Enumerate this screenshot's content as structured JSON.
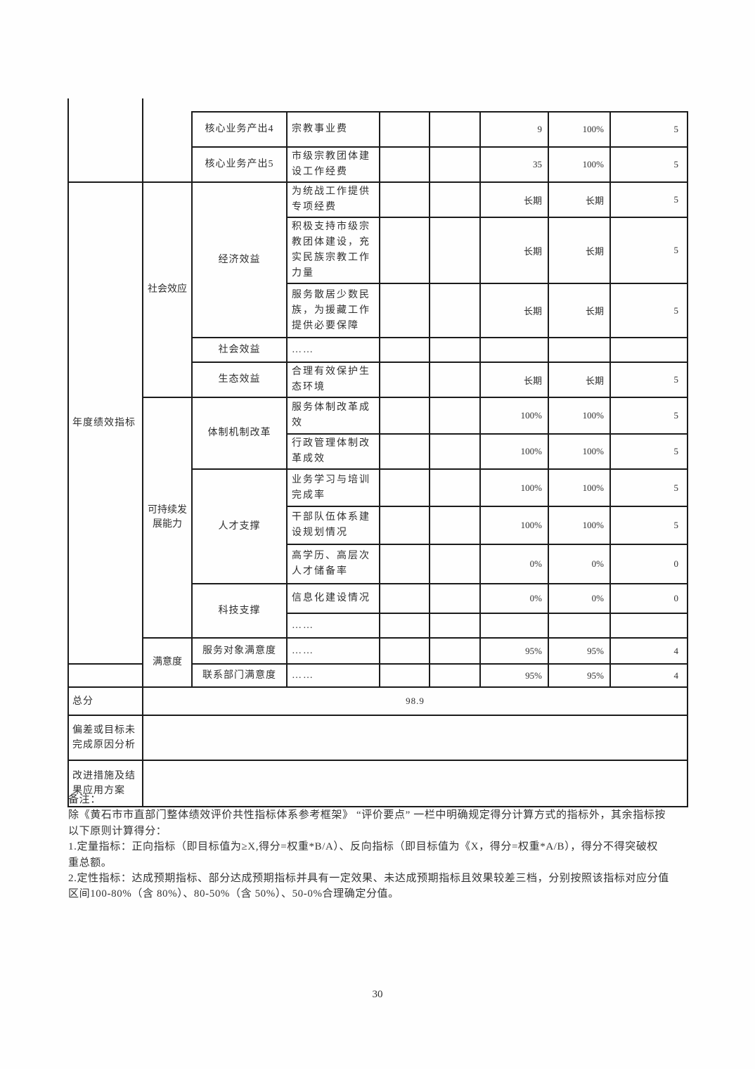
{
  "colors": {
    "border": "#1b1b1b",
    "text": "#2f2f2f"
  },
  "table": {
    "level1_annual_label": "年度绩效指标",
    "level2": {
      "social": "社会效应",
      "sustainability": "可持续发展能力",
      "satisfaction": "满意度"
    },
    "rows": [
      {
        "group": "核心业务产出4",
        "name": "宗教事业费",
        "v1": "9",
        "v2": "100%",
        "score": "5"
      },
      {
        "group": "核心业务产出5",
        "name": "市级宗教团体建设工作经费",
        "v1": "35",
        "v2": "100%",
        "score": "5"
      },
      {
        "group": "经济效益",
        "name": "为统战工作提供专项经费",
        "v1": "长期",
        "v2": "长期",
        "score": "5"
      },
      {
        "name": "积极支持市级宗教团体建设，充实民族宗教工作力量",
        "v1": "长期",
        "v2": "长期",
        "score": "5"
      },
      {
        "name": "服务散居少数民族，为援藏工作提供必要保障",
        "v1": "长期",
        "v2": "长期",
        "score": "5"
      },
      {
        "group": "社会效益",
        "name": "……",
        "v1": "",
        "v2": "",
        "score": ""
      },
      {
        "group": "生态效益",
        "name": "合理有效保护生态环境",
        "v1": "长期",
        "v2": "长期",
        "score": "5"
      },
      {
        "group": "体制机制改革",
        "name": "服务体制改革成效",
        "v1": "100%",
        "v2": "100%",
        "score": "5"
      },
      {
        "name": "行政管理体制改革成效",
        "v1": "100%",
        "v2": "100%",
        "score": "5"
      },
      {
        "group": "人才支撑",
        "name": "业务学习与培训完成率",
        "v1": "100%",
        "v2": "100%",
        "score": "5"
      },
      {
        "name": "干部队伍体系建设规划情况",
        "v1": "100%",
        "v2": "100%",
        "score": "5"
      },
      {
        "name": "高学历、高层次人才储备率",
        "v1": "0%",
        "v2": "0%",
        "score": "0"
      },
      {
        "group": "科技支撑",
        "name": "信息化建设情况",
        "v1": "0%",
        "v2": "0%",
        "score": "0"
      },
      {
        "name": "……",
        "v1": "",
        "v2": "",
        "score": ""
      },
      {
        "group": "服务对象满意度",
        "name": "……",
        "v1": "95%",
        "v2": "95%",
        "score": "4"
      },
      {
        "group": "联系部门满意度",
        "name": "……",
        "v1": "95%",
        "v2": "95%",
        "score": "4"
      }
    ],
    "summary": {
      "total_label": "总分",
      "total_value": "98.9",
      "deviation_label": "偏差或目标未完成原因分析",
      "deviation_value": "",
      "improvement_label": "改进措施及结果应用方案",
      "improvement_value": ""
    }
  },
  "notes": {
    "lines": [
      "备注：",
      "除《黄石市市直部门整体绩效评价共性指标体系参考框架》 “评价要点” 一栏中明确规定得分计算方式的指标外，其余指标按",
      "以下原则计算得分：",
      "1.定量指标：正向指标（即目标值为≥X,得分=权重*B/A）、反向指标（即目标值为《X，得分=权重*A/B），得分不得突破权",
      "重总额。",
      "2.定性指标：达成预期指标、部分达成预期指标并具有一定效果、未达成预期指标且效果较差三档，分别按照该指标对应分值",
      "区间100-80%（含 80%）、80-50%（含 50%）、50-0%合理确定分值。"
    ]
  },
  "page_number": "30"
}
